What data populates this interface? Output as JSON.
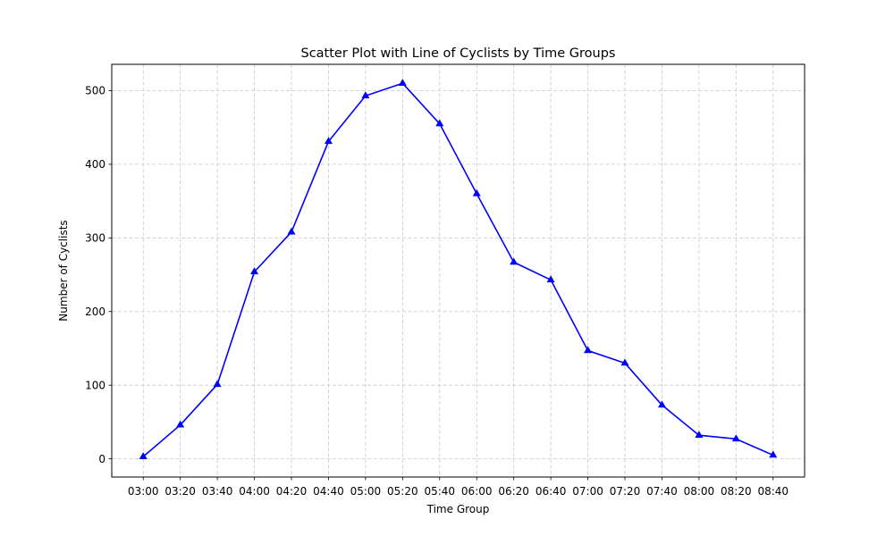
{
  "chart_data": {
    "type": "line",
    "title": "Scatter Plot with Line of Cyclists by Time Groups",
    "xlabel": "Time Group",
    "ylabel": "Number of Cyclists",
    "categories": [
      "03:00",
      "03:20",
      "03:40",
      "04:00",
      "04:20",
      "04:40",
      "05:00",
      "05:20",
      "05:40",
      "06:00",
      "06:20",
      "06:40",
      "07:00",
      "07:20",
      "07:40",
      "08:00",
      "08:20",
      "08:40"
    ],
    "series": [
      {
        "values": [
          3,
          46,
          101,
          254,
          308,
          431,
          493,
          510,
          455,
          360,
          267,
          243,
          147,
          130,
          73,
          32,
          27,
          5
        ],
        "color": "#0000ff",
        "marker": "triangle-up"
      }
    ],
    "ylim": [
      -24.75,
      535.75
    ],
    "yticks": [
      0,
      100,
      200,
      300,
      400,
      500
    ],
    "grid": true,
    "grid_style": "dashed",
    "grid_color": "#c8c8c8"
  }
}
